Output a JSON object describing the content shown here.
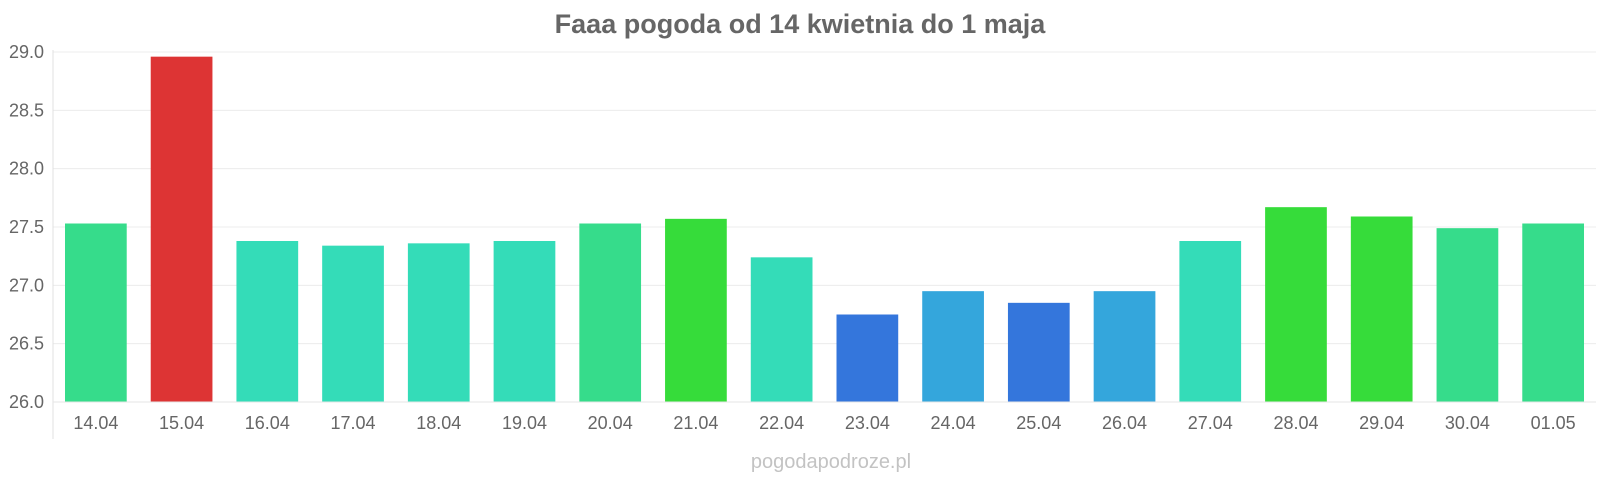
{
  "chart_data": {
    "type": "bar",
    "title": "Faaa pogoda od 14 kwietnia do 1 maja",
    "xlabel": "",
    "ylabel": "",
    "categories": [
      "14.04",
      "15.04",
      "16.04",
      "17.04",
      "18.04",
      "19.04",
      "20.04",
      "21.04",
      "22.04",
      "23.04",
      "24.04",
      "25.04",
      "26.04",
      "27.04",
      "28.04",
      "29.04",
      "30.04",
      "01.05"
    ],
    "values": [
      27.53,
      28.96,
      27.38,
      27.34,
      27.36,
      27.38,
      27.53,
      27.57,
      27.24,
      26.75,
      26.95,
      26.85,
      26.95,
      27.38,
      27.67,
      27.59,
      27.49,
      27.53
    ],
    "colors": [
      "#36dc8b",
      "#dd3434",
      "#34dcb8",
      "#34dcb8",
      "#34dcb8",
      "#34dcb8",
      "#36dc8b",
      "#36dc3a",
      "#34dcb8",
      "#3476dc",
      "#34a6dc",
      "#3476dc",
      "#34a6dc",
      "#34dcb8",
      "#36dc3a",
      "#36dc3a",
      "#36dc8b",
      "#36dc8b"
    ],
    "ylim": [
      26.0,
      29.0
    ],
    "yticks": [
      "26.0",
      "26.5",
      "27.0",
      "27.5",
      "28.0",
      "28.5",
      "29.0"
    ],
    "grid": true,
    "legend": "none"
  },
  "watermark": "pogodapodroze.pl"
}
